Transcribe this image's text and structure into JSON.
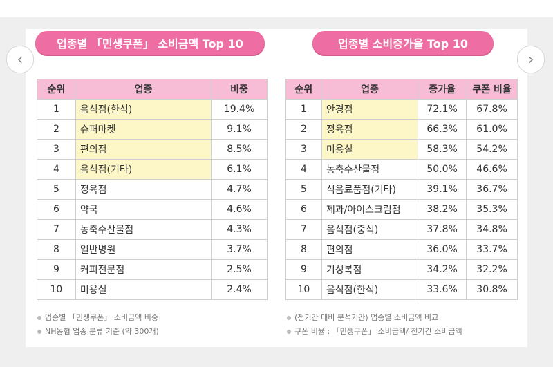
{
  "left_panel": {
    "title": "업종별 「민생쿠폰」 소비금액 Top 10",
    "headers": [
      "순위",
      "업종",
      "비중"
    ],
    "rows": [
      {
        "rank": "1",
        "name": "음식점(한식)",
        "share": "19.4%",
        "highlight": true
      },
      {
        "rank": "2",
        "name": "슈퍼마켓",
        "share": "9.1%",
        "highlight": true
      },
      {
        "rank": "3",
        "name": "편의점",
        "share": "8.5%",
        "highlight": true
      },
      {
        "rank": "4",
        "name": "음식점(기타)",
        "share": "6.1%",
        "highlight": true
      },
      {
        "rank": "5",
        "name": "정육점",
        "share": "4.7%",
        "highlight": false
      },
      {
        "rank": "6",
        "name": "약국",
        "share": "4.6%",
        "highlight": false
      },
      {
        "rank": "7",
        "name": "농축수산물점",
        "share": "4.3%",
        "highlight": false
      },
      {
        "rank": "8",
        "name": "일반병원",
        "share": "3.7%",
        "highlight": false
      },
      {
        "rank": "9",
        "name": "커피전문점",
        "share": "2.5%",
        "highlight": false
      },
      {
        "rank": "10",
        "name": "미용실",
        "share": "2.4%",
        "highlight": false
      }
    ],
    "notes": [
      "업종별 「민생쿠폰」 소비금액 비중",
      "NH농협 업종 분류 기준 (약 300개)"
    ]
  },
  "right_panel": {
    "title": "업종별 소비증가율 Top 10",
    "headers": [
      "순위",
      "업종",
      "증가율",
      "쿠폰 비율"
    ],
    "rows": [
      {
        "rank": "1",
        "name": "안경점",
        "growth": "72.1%",
        "coupon": "67.8%",
        "highlight": true
      },
      {
        "rank": "2",
        "name": "정육점",
        "growth": "66.3%",
        "coupon": "61.0%",
        "highlight": true
      },
      {
        "rank": "3",
        "name": "미용실",
        "growth": "58.3%",
        "coupon": "54.2%",
        "highlight": true
      },
      {
        "rank": "4",
        "name": "농축수산물점",
        "growth": "50.0%",
        "coupon": "46.6%",
        "highlight": false
      },
      {
        "rank": "5",
        "name": "식음료품점(기타)",
        "growth": "39.1%",
        "coupon": "36.7%",
        "highlight": false
      },
      {
        "rank": "6",
        "name": "제과/아이스크림점",
        "growth": "38.2%",
        "coupon": "35.3%",
        "highlight": false
      },
      {
        "rank": "7",
        "name": "음식점(중식)",
        "growth": "37.8%",
        "coupon": "34.8%",
        "highlight": false
      },
      {
        "rank": "8",
        "name": "편의점",
        "growth": "36.0%",
        "coupon": "33.7%",
        "highlight": false
      },
      {
        "rank": "9",
        "name": "기성복점",
        "growth": "34.2%",
        "coupon": "32.2%",
        "highlight": false
      },
      {
        "rank": "10",
        "name": "음식점(한식)",
        "growth": "33.6%",
        "coupon": "30.8%",
        "highlight": false
      }
    ],
    "notes": [
      "(전기간 대비 분석기간) 업종별 소비금액 비교",
      "쿠폰 비율 : 「민생쿠폰」 소비금액/ 전기간 소비금액"
    ]
  },
  "navigation": {
    "prev_icon": "chevron-left-icon",
    "next_icon": "chevron-right-icon",
    "prev_glyph": "‹",
    "next_glyph": "›"
  },
  "colors": {
    "accent_pink": "#ee6ea3",
    "header_pink": "#f7bdd6",
    "highlight_yellow": "#fdf6c7",
    "background": "#efefef"
  }
}
